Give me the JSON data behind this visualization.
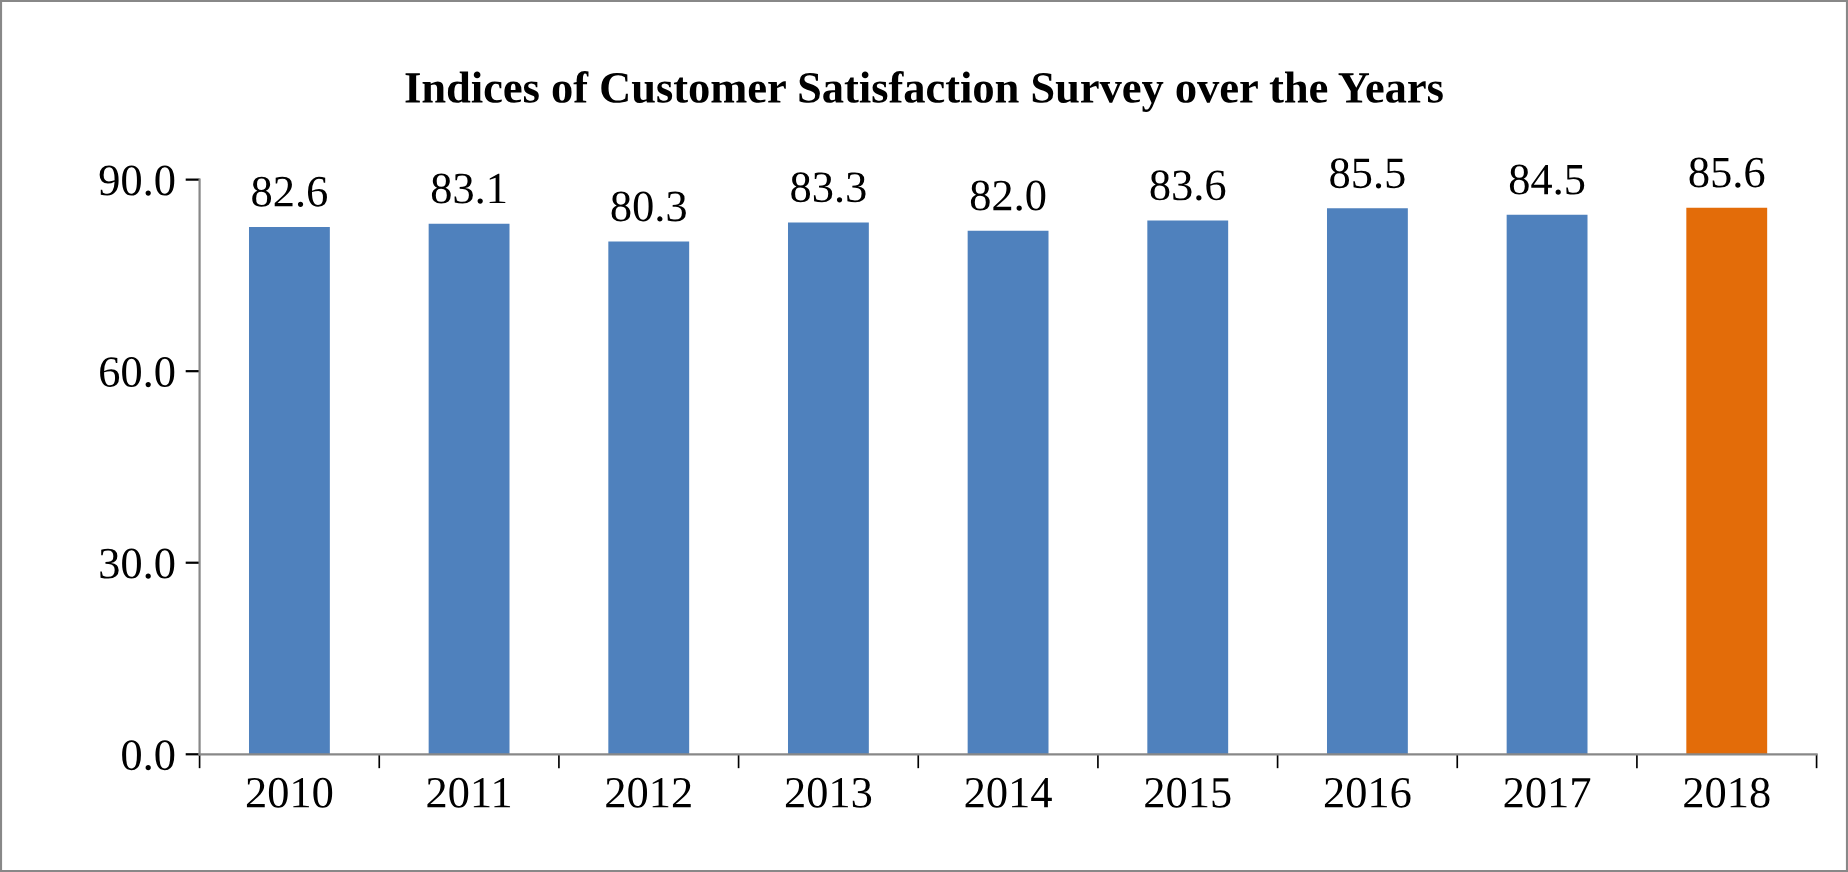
{
  "chart_data": {
    "type": "bar",
    "title": "Indices of Customer Satisfaction Survey over the Years",
    "categories": [
      "2010",
      "2011",
      "2012",
      "2013",
      "2014",
      "2015",
      "2016",
      "2017",
      "2018"
    ],
    "values": [
      82.6,
      83.1,
      80.3,
      83.3,
      82.0,
      83.6,
      85.5,
      84.5,
      85.6
    ],
    "value_labels": [
      "82.6",
      "83.1",
      "80.3",
      "83.3",
      "82.0",
      "83.6",
      "85.5",
      "84.5",
      "85.6"
    ],
    "colors": [
      "#4f81bd",
      "#4f81bd",
      "#4f81bd",
      "#4f81bd",
      "#4f81bd",
      "#4f81bd",
      "#4f81bd",
      "#4f81bd",
      "#e36c09"
    ],
    "ylim": [
      0,
      90
    ],
    "yticks": [
      {
        "value": 0,
        "label": "0.0"
      },
      {
        "value": 30,
        "label": "30.0"
      },
      {
        "value": 60,
        "label": "60.0"
      },
      {
        "value": 90,
        "label": "90.0"
      }
    ],
    "grid": false
  }
}
